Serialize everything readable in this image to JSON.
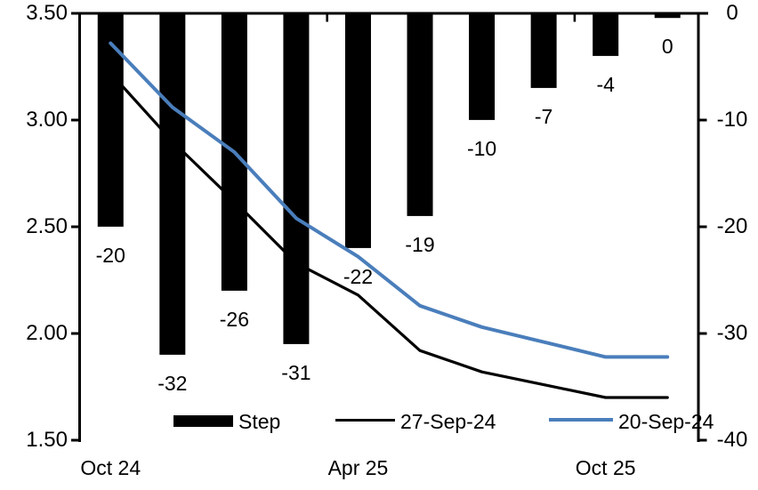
{
  "chart_data": {
    "type": "combo-bar-line",
    "title": "",
    "x_axis": {
      "tick_labels": [
        "Oct 24",
        "Apr 25",
        "Oct 25"
      ],
      "label_category_index": [
        0,
        4,
        8
      ],
      "group_boundary_ticks_after_category": [
        4,
        8
      ]
    },
    "left_axis": {
      "tick_labels": [
        "3.50",
        "3.00",
        "2.50",
        "2.00",
        "1.50"
      ],
      "tick_values": [
        3.5,
        3.0,
        2.5,
        2.0,
        1.5
      ],
      "min": 1.5,
      "max": 3.5,
      "side": "left"
    },
    "right_axis": {
      "tick_labels": [
        "0",
        "-10",
        "-20",
        "-30",
        "-40"
      ],
      "tick_values": [
        0,
        -10,
        -20,
        -30,
        -40
      ],
      "min": -40,
      "max": 0,
      "side": "right"
    },
    "categories_count": 10,
    "series": [
      {
        "name": "Step",
        "type": "bar",
        "axis": "right",
        "color": "#000000",
        "values": [
          -20,
          -32,
          -26,
          -31,
          -22,
          -19,
          -10,
          -7,
          -4,
          0
        ],
        "data_labels": [
          "-20",
          "-32",
          "-26",
          "-31",
          "-22",
          "-19",
          "-10",
          "-7",
          "-4",
          "0"
        ]
      },
      {
        "name": "27-Sep-24",
        "type": "line",
        "axis": "left",
        "color": "#000000",
        "values": [
          3.22,
          2.9,
          2.62,
          2.33,
          2.18,
          1.92,
          1.82,
          1.76,
          1.7,
          1.7
        ]
      },
      {
        "name": "20-Sep-24",
        "type": "line",
        "axis": "left",
        "color": "#4A7EBB",
        "values": [
          3.36,
          3.06,
          2.85,
          2.54,
          2.36,
          2.13,
          2.03,
          1.96,
          1.89,
          1.89
        ]
      }
    ],
    "legend": {
      "position": "bottom",
      "items": [
        "Step",
        "27-Sep-24",
        "20-Sep-24"
      ]
    },
    "grid": "off",
    "colors": {
      "bar": "#000000",
      "line_27_sep": "#000000",
      "line_20_sep": "#4A7EBB",
      "axis": "#000000",
      "background": "#ffffff"
    }
  }
}
